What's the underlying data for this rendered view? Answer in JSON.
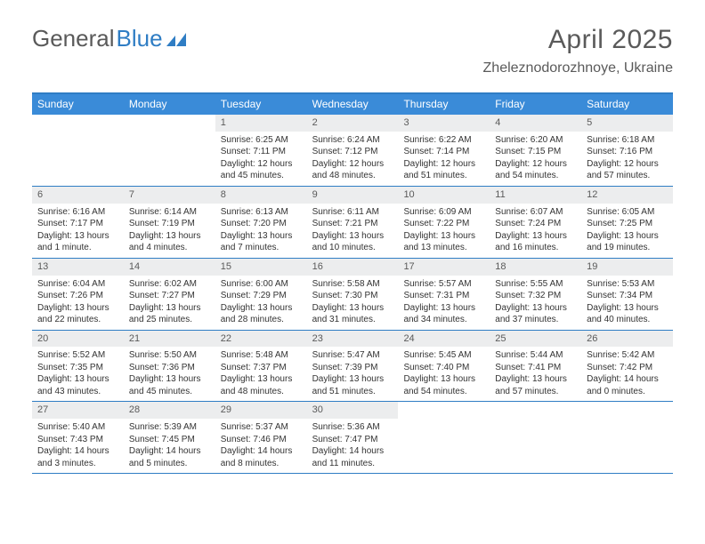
{
  "logo": {
    "text1": "General",
    "text2": "Blue"
  },
  "title": "April 2025",
  "location": "Zheleznodorozhnoye, Ukraine",
  "colors": {
    "header_bg": "#3a8bd8",
    "border": "#2f7dc4",
    "daynum_bg": "#ecedee",
    "text": "#333333",
    "muted": "#5a5a5a"
  },
  "weekdays": [
    "Sunday",
    "Monday",
    "Tuesday",
    "Wednesday",
    "Thursday",
    "Friday",
    "Saturday"
  ],
  "weeks": [
    [
      {
        "n": "",
        "sunrise": "",
        "sunset": "",
        "daylight": ""
      },
      {
        "n": "",
        "sunrise": "",
        "sunset": "",
        "daylight": ""
      },
      {
        "n": "1",
        "sunrise": "Sunrise: 6:25 AM",
        "sunset": "Sunset: 7:11 PM",
        "daylight": "Daylight: 12 hours and 45 minutes."
      },
      {
        "n": "2",
        "sunrise": "Sunrise: 6:24 AM",
        "sunset": "Sunset: 7:12 PM",
        "daylight": "Daylight: 12 hours and 48 minutes."
      },
      {
        "n": "3",
        "sunrise": "Sunrise: 6:22 AM",
        "sunset": "Sunset: 7:14 PM",
        "daylight": "Daylight: 12 hours and 51 minutes."
      },
      {
        "n": "4",
        "sunrise": "Sunrise: 6:20 AM",
        "sunset": "Sunset: 7:15 PM",
        "daylight": "Daylight: 12 hours and 54 minutes."
      },
      {
        "n": "5",
        "sunrise": "Sunrise: 6:18 AM",
        "sunset": "Sunset: 7:16 PM",
        "daylight": "Daylight: 12 hours and 57 minutes."
      }
    ],
    [
      {
        "n": "6",
        "sunrise": "Sunrise: 6:16 AM",
        "sunset": "Sunset: 7:17 PM",
        "daylight": "Daylight: 13 hours and 1 minute."
      },
      {
        "n": "7",
        "sunrise": "Sunrise: 6:14 AM",
        "sunset": "Sunset: 7:19 PM",
        "daylight": "Daylight: 13 hours and 4 minutes."
      },
      {
        "n": "8",
        "sunrise": "Sunrise: 6:13 AM",
        "sunset": "Sunset: 7:20 PM",
        "daylight": "Daylight: 13 hours and 7 minutes."
      },
      {
        "n": "9",
        "sunrise": "Sunrise: 6:11 AM",
        "sunset": "Sunset: 7:21 PM",
        "daylight": "Daylight: 13 hours and 10 minutes."
      },
      {
        "n": "10",
        "sunrise": "Sunrise: 6:09 AM",
        "sunset": "Sunset: 7:22 PM",
        "daylight": "Daylight: 13 hours and 13 minutes."
      },
      {
        "n": "11",
        "sunrise": "Sunrise: 6:07 AM",
        "sunset": "Sunset: 7:24 PM",
        "daylight": "Daylight: 13 hours and 16 minutes."
      },
      {
        "n": "12",
        "sunrise": "Sunrise: 6:05 AM",
        "sunset": "Sunset: 7:25 PM",
        "daylight": "Daylight: 13 hours and 19 minutes."
      }
    ],
    [
      {
        "n": "13",
        "sunrise": "Sunrise: 6:04 AM",
        "sunset": "Sunset: 7:26 PM",
        "daylight": "Daylight: 13 hours and 22 minutes."
      },
      {
        "n": "14",
        "sunrise": "Sunrise: 6:02 AM",
        "sunset": "Sunset: 7:27 PM",
        "daylight": "Daylight: 13 hours and 25 minutes."
      },
      {
        "n": "15",
        "sunrise": "Sunrise: 6:00 AM",
        "sunset": "Sunset: 7:29 PM",
        "daylight": "Daylight: 13 hours and 28 minutes."
      },
      {
        "n": "16",
        "sunrise": "Sunrise: 5:58 AM",
        "sunset": "Sunset: 7:30 PM",
        "daylight": "Daylight: 13 hours and 31 minutes."
      },
      {
        "n": "17",
        "sunrise": "Sunrise: 5:57 AM",
        "sunset": "Sunset: 7:31 PM",
        "daylight": "Daylight: 13 hours and 34 minutes."
      },
      {
        "n": "18",
        "sunrise": "Sunrise: 5:55 AM",
        "sunset": "Sunset: 7:32 PM",
        "daylight": "Daylight: 13 hours and 37 minutes."
      },
      {
        "n": "19",
        "sunrise": "Sunrise: 5:53 AM",
        "sunset": "Sunset: 7:34 PM",
        "daylight": "Daylight: 13 hours and 40 minutes."
      }
    ],
    [
      {
        "n": "20",
        "sunrise": "Sunrise: 5:52 AM",
        "sunset": "Sunset: 7:35 PM",
        "daylight": "Daylight: 13 hours and 43 minutes."
      },
      {
        "n": "21",
        "sunrise": "Sunrise: 5:50 AM",
        "sunset": "Sunset: 7:36 PM",
        "daylight": "Daylight: 13 hours and 45 minutes."
      },
      {
        "n": "22",
        "sunrise": "Sunrise: 5:48 AM",
        "sunset": "Sunset: 7:37 PM",
        "daylight": "Daylight: 13 hours and 48 minutes."
      },
      {
        "n": "23",
        "sunrise": "Sunrise: 5:47 AM",
        "sunset": "Sunset: 7:39 PM",
        "daylight": "Daylight: 13 hours and 51 minutes."
      },
      {
        "n": "24",
        "sunrise": "Sunrise: 5:45 AM",
        "sunset": "Sunset: 7:40 PM",
        "daylight": "Daylight: 13 hours and 54 minutes."
      },
      {
        "n": "25",
        "sunrise": "Sunrise: 5:44 AM",
        "sunset": "Sunset: 7:41 PM",
        "daylight": "Daylight: 13 hours and 57 minutes."
      },
      {
        "n": "26",
        "sunrise": "Sunrise: 5:42 AM",
        "sunset": "Sunset: 7:42 PM",
        "daylight": "Daylight: 14 hours and 0 minutes."
      }
    ],
    [
      {
        "n": "27",
        "sunrise": "Sunrise: 5:40 AM",
        "sunset": "Sunset: 7:43 PM",
        "daylight": "Daylight: 14 hours and 3 minutes."
      },
      {
        "n": "28",
        "sunrise": "Sunrise: 5:39 AM",
        "sunset": "Sunset: 7:45 PM",
        "daylight": "Daylight: 14 hours and 5 minutes."
      },
      {
        "n": "29",
        "sunrise": "Sunrise: 5:37 AM",
        "sunset": "Sunset: 7:46 PM",
        "daylight": "Daylight: 14 hours and 8 minutes."
      },
      {
        "n": "30",
        "sunrise": "Sunrise: 5:36 AM",
        "sunset": "Sunset: 7:47 PM",
        "daylight": "Daylight: 14 hours and 11 minutes."
      },
      {
        "n": "",
        "sunrise": "",
        "sunset": "",
        "daylight": ""
      },
      {
        "n": "",
        "sunrise": "",
        "sunset": "",
        "daylight": ""
      },
      {
        "n": "",
        "sunrise": "",
        "sunset": "",
        "daylight": ""
      }
    ]
  ]
}
